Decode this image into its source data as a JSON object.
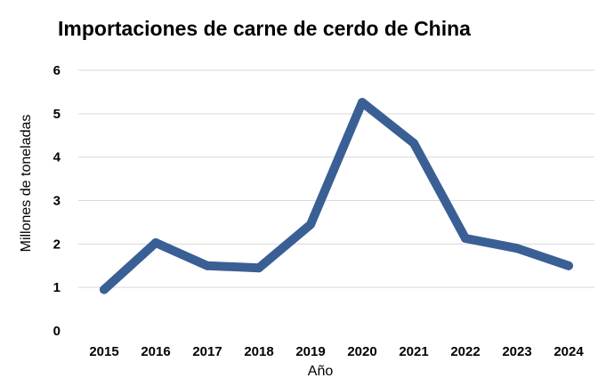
{
  "chart_data": {
    "type": "line",
    "title": "Importaciones de carne de cerdo de China",
    "xlabel": "Año",
    "ylabel": "Millones de toneladas",
    "categories": [
      "2015",
      "2016",
      "2017",
      "2018",
      "2019",
      "2020",
      "2021",
      "2022",
      "2023",
      "2024"
    ],
    "series": [
      {
        "values": [
          0.95,
          2.03,
          1.5,
          1.45,
          2.45,
          5.26,
          4.32,
          2.13,
          1.9,
          1.5
        ]
      }
    ],
    "ylim": [
      0,
      6
    ],
    "yticks": [
      "0",
      "1",
      "2",
      "3",
      "4",
      "5",
      "6"
    ],
    "grid": true,
    "legend": "none",
    "colors": {
      "line": "#3a5f94",
      "grid": "#d9d9d9"
    }
  }
}
